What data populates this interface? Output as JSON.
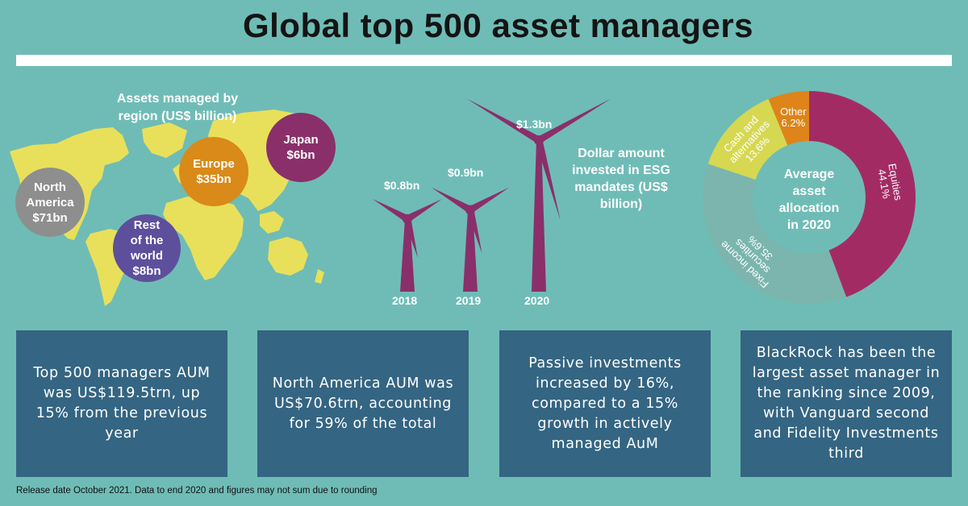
{
  "title": "Global top 500 asset managers",
  "colors": {
    "background": "#6fbcb6",
    "map": "#e8e05a",
    "north_america": "#8e8e8e",
    "rest_of_world": "#5e4f9c",
    "europe": "#d98a18",
    "japan": "#8a2f6a",
    "turbine": "#8a2f6a",
    "box": "#346582"
  },
  "map": {
    "title": "Assets managed by region (US$ billion)",
    "regions": [
      {
        "name": "North America",
        "label_1": "North",
        "label_2": "America",
        "value": "$71bn"
      },
      {
        "name": "Rest of the world",
        "label_1": "Rest",
        "label_2": "of the",
        "label_3": "world",
        "value": "$8bn"
      },
      {
        "name": "Europe",
        "label_1": "Europe",
        "value": "$35bn"
      },
      {
        "name": "Japan",
        "label_1": "Japan",
        "value": "$6bn"
      }
    ]
  },
  "esg": {
    "title": "Dollar amount invested in ESG mandates (US$ billion)",
    "turbines": [
      {
        "year": "2018",
        "value_label": "$0.8bn"
      },
      {
        "year": "2019",
        "value_label": "$0.9bn"
      },
      {
        "year": "2020",
        "value_label": "$1.3bn"
      }
    ]
  },
  "donut": {
    "center_label": "Average asset allocation in 2020",
    "segments": [
      {
        "label": "Equities",
        "pct": "44.1%",
        "color": "#a32b64"
      },
      {
        "label": "Fixed income securities",
        "pct": "35.6%",
        "color": "#7bb5ae"
      },
      {
        "label": "Cash and alternatives",
        "pct": "13.6%",
        "color": "#d6d852"
      },
      {
        "label": "Other",
        "pct": "6.2%",
        "color": "#de8419"
      }
    ]
  },
  "chart_data": [
    {
      "type": "bubble",
      "title": "Assets managed by region (US$ billion)",
      "categories": [
        "North America",
        "Rest of the world",
        "Europe",
        "Japan"
      ],
      "values": [
        71,
        8,
        35,
        6
      ]
    },
    {
      "type": "bar",
      "title": "Dollar amount invested in ESG mandates (US$ billion)",
      "categories": [
        "2018",
        "2019",
        "2020"
      ],
      "values": [
        0.8,
        0.9,
        1.3
      ]
    },
    {
      "type": "pie",
      "title": "Average asset allocation in 2020",
      "categories": [
        "Equities",
        "Fixed income securities",
        "Cash and alternatives",
        "Other"
      ],
      "values": [
        44.1,
        35.6,
        13.6,
        6.2
      ]
    }
  ],
  "boxes": [
    "Top 500 managers AUM was US$119.5trn, up 15% from the previous year",
    "North America AUM was US$70.6trn, accounting for 59% of the total",
    "Passive investments increased by 16%, compared to a 15% growth in actively managed AuM",
    "BlackRock has been the largest asset manager in the ranking since 2009, with Vanguard second and Fidelity Investments third"
  ],
  "footnote": "Release date October 2021. Data to end 2020 and figures may not sum due to rounding"
}
